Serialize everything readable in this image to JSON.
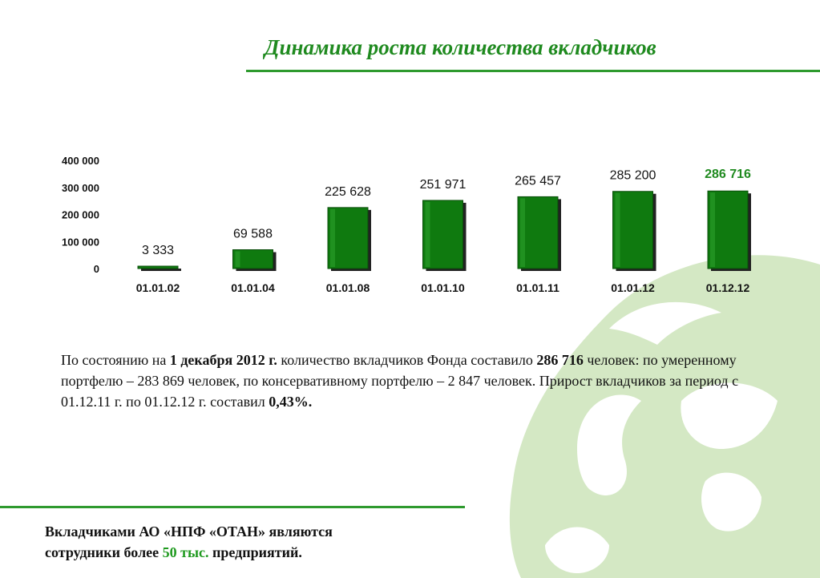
{
  "title": "Динамика роста количества вкладчиков",
  "chart_data": {
    "type": "bar",
    "categories": [
      "01.01.02",
      "01.01.04",
      "01.01.08",
      "01.01.10",
      "01.01.11",
      "01.01.12",
      "01.12.12"
    ],
    "values": [
      3333,
      69588,
      225628,
      251971,
      265457,
      285200,
      286716
    ],
    "value_labels": [
      "3 333",
      "69 588",
      "225 628",
      "251 971",
      "265 457",
      "285 200",
      "286 716"
    ],
    "y_ticks": [
      0,
      100000,
      200000,
      300000,
      400000
    ],
    "y_tick_labels": [
      "0",
      "100 000",
      "200 000",
      "300 000",
      "400 000"
    ],
    "ylim": [
      0,
      400000
    ],
    "xlabel": "",
    "ylabel": "",
    "highlight_index": 6,
    "bar_color": "#0f7a0f",
    "highlight_label_color": "#1f8a1f"
  },
  "summary": {
    "prefix": "По состоянию на ",
    "date": "1 декабря 2012 г.",
    "middle": " количество вкладчиков Фонда составило ",
    "total": "286 716",
    "details": " человек: по умеренному портфелю – 283 869 человек, по консервативному портфелю – 2 847 человек. Прирост вкладчиков за период с 01.12.11 г. по 01.12.12 г. составил ",
    "growth": "0,43%."
  },
  "footer": {
    "line1": "Вкладчиками АО «НПФ «ОТАН» являются",
    "line2_prefix": "сотрудники более ",
    "line2_highlight": "50 тыс.",
    "line2_suffix": "  предприятий."
  },
  "colors": {
    "accent": "#2e9a2e",
    "watermark": "#d4e8c4"
  }
}
